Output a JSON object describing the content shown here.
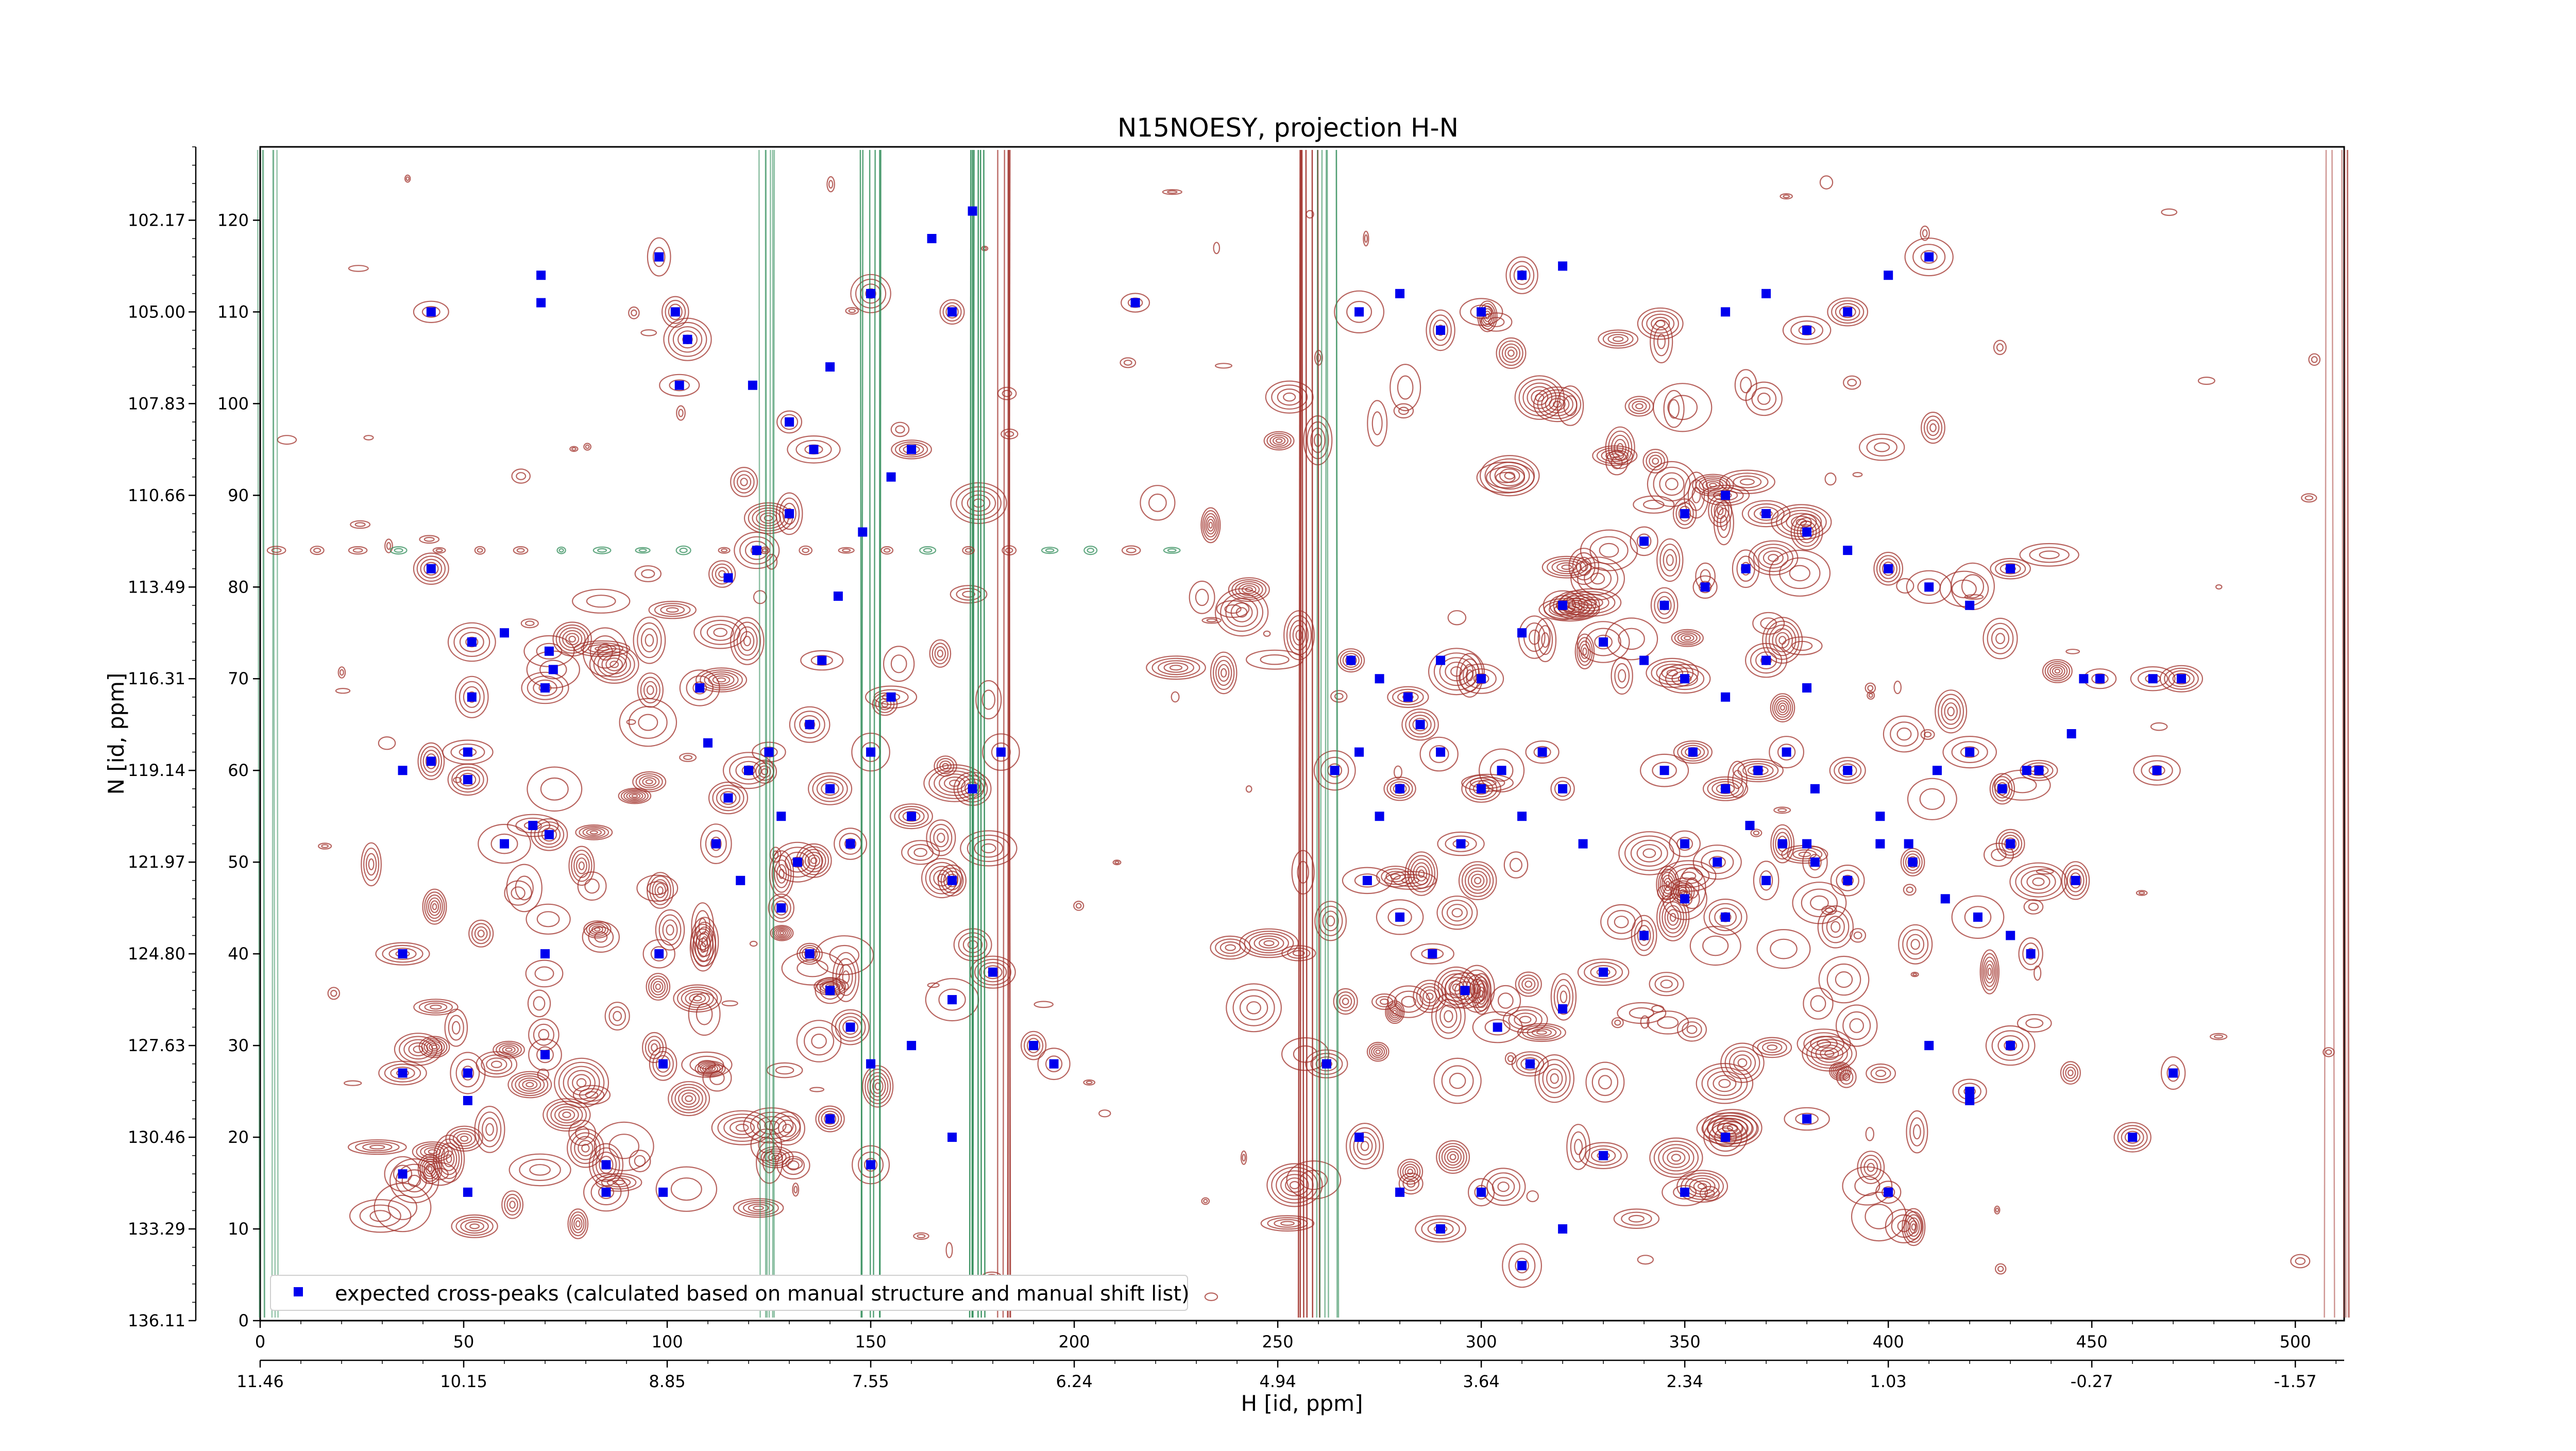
{
  "chart_data": {
    "type": "scatter",
    "title": "N15NOESY, projection H-N",
    "xlabel": "H [id, ppm]",
    "ylabel": "N [id, ppm]",
    "xlim": [
      0,
      512
    ],
    "ylim": [
      0,
      128
    ],
    "x_ticks": [
      0,
      50,
      100,
      150,
      200,
      250,
      300,
      350,
      400,
      450,
      500
    ],
    "y_ticks": [
      0,
      10,
      20,
      30,
      40,
      50,
      60,
      70,
      80,
      90,
      100,
      110,
      120
    ],
    "x_ppm_ticks": [
      {
        "at": 0,
        "label": "11.46"
      },
      {
        "at": 50,
        "label": "10.15"
      },
      {
        "at": 100,
        "label": "8.85"
      },
      {
        "at": 150,
        "label": "7.55"
      },
      {
        "at": 200,
        "label": "6.24"
      },
      {
        "at": 250,
        "label": "4.94"
      },
      {
        "at": 300,
        "label": "3.64"
      },
      {
        "at": 350,
        "label": "2.34"
      },
      {
        "at": 400,
        "label": "1.03"
      },
      {
        "at": 450,
        "label": "-0.27"
      },
      {
        "at": 500,
        "label": "-1.57"
      }
    ],
    "y_ppm_ticks": [
      {
        "at": 0,
        "label": "136.11"
      },
      {
        "at": 10,
        "label": "133.29"
      },
      {
        "at": 20,
        "label": "130.46"
      },
      {
        "at": 30,
        "label": "127.63"
      },
      {
        "at": 40,
        "label": "124.80"
      },
      {
        "at": 50,
        "label": "121.97"
      },
      {
        "at": 60,
        "label": "119.14"
      },
      {
        "at": 70,
        "label": "116.31"
      },
      {
        "at": 80,
        "label": "113.49"
      },
      {
        "at": 90,
        "label": "110.66"
      },
      {
        "at": 100,
        "label": "107.83"
      },
      {
        "at": 110,
        "label": "105.00"
      },
      {
        "at": 120,
        "label": "102.17"
      }
    ],
    "legend": {
      "label": "expected cross-peaks (calculated based on manual structure and manual shift list)",
      "placement": "lower-left"
    },
    "colors": {
      "peaks": "#0000ee",
      "contour_positive": "#a0302a",
      "contour_negative": "#2e8b57"
    },
    "series": [
      {
        "name": "expected cross-peaks (calculated based on manual structure and manual shift list)",
        "points": [
          [
            42,
            110
          ],
          [
            69,
            114
          ],
          [
            69,
            111
          ],
          [
            98,
            116
          ],
          [
            102,
            110
          ],
          [
            105,
            107
          ],
          [
            103,
            102
          ],
          [
            121,
            102
          ],
          [
            130,
            98
          ],
          [
            136,
            95
          ],
          [
            140,
            104
          ],
          [
            150,
            112
          ],
          [
            165,
            118
          ],
          [
            170,
            110
          ],
          [
            175,
            121
          ],
          [
            215,
            111
          ],
          [
            35,
            60
          ],
          [
            42,
            61
          ],
          [
            51,
            59
          ],
          [
            51,
            62
          ],
          [
            67,
            54
          ],
          [
            71,
            53
          ],
          [
            60,
            52
          ],
          [
            70,
            69
          ],
          [
            72,
            71
          ],
          [
            71,
            73
          ],
          [
            42,
            82
          ],
          [
            52,
            74
          ],
          [
            52,
            68
          ],
          [
            60,
            75
          ],
          [
            35,
            27
          ],
          [
            51,
            27
          ],
          [
            51,
            24
          ],
          [
            51,
            14
          ],
          [
            70,
            29
          ],
          [
            70,
            40
          ],
          [
            35,
            40
          ],
          [
            35,
            16
          ],
          [
            85,
            17
          ],
          [
            85,
            14
          ],
          [
            99,
            14
          ],
          [
            98,
            40
          ],
          [
            99,
            28
          ],
          [
            120,
            60
          ],
          [
            125,
            62
          ],
          [
            128,
            55
          ],
          [
            132,
            50
          ],
          [
            135,
            65
          ],
          [
            140,
            58
          ],
          [
            145,
            52
          ],
          [
            150,
            62
          ],
          [
            155,
            68
          ],
          [
            160,
            55
          ],
          [
            170,
            48
          ],
          [
            175,
            58
          ],
          [
            182,
            62
          ],
          [
            110,
            63
          ],
          [
            115,
            57
          ],
          [
            118,
            48
          ],
          [
            112,
            52
          ],
          [
            108,
            69
          ],
          [
            138,
            72
          ],
          [
            142,
            79
          ],
          [
            148,
            86
          ],
          [
            155,
            92
          ],
          [
            160,
            95
          ],
          [
            130,
            88
          ],
          [
            122,
            84
          ],
          [
            115,
            81
          ],
          [
            128,
            45
          ],
          [
            135,
            40
          ],
          [
            140,
            36
          ],
          [
            145,
            32
          ],
          [
            150,
            28
          ],
          [
            160,
            30
          ],
          [
            170,
            35
          ],
          [
            180,
            38
          ],
          [
            190,
            30
          ],
          [
            195,
            28
          ],
          [
            170,
            20
          ],
          [
            150,
            17
          ],
          [
            140,
            22
          ],
          [
            264,
            60
          ],
          [
            270,
            62
          ],
          [
            275,
            55
          ],
          [
            280,
            58
          ],
          [
            285,
            65
          ],
          [
            290,
            62
          ],
          [
            295,
            52
          ],
          [
            300,
            58
          ],
          [
            305,
            60
          ],
          [
            310,
            55
          ],
          [
            315,
            62
          ],
          [
            320,
            58
          ],
          [
            325,
            52
          ],
          [
            268,
            72
          ],
          [
            275,
            70
          ],
          [
            282,
            68
          ],
          [
            290,
            72
          ],
          [
            300,
            70
          ],
          [
            310,
            75
          ],
          [
            320,
            78
          ],
          [
            330,
            74
          ],
          [
            340,
            72
          ],
          [
            350,
            70
          ],
          [
            360,
            68
          ],
          [
            370,
            72
          ],
          [
            380,
            69
          ],
          [
            272,
            48
          ],
          [
            280,
            44
          ],
          [
            288,
            40
          ],
          [
            296,
            36
          ],
          [
            304,
            32
          ],
          [
            312,
            28
          ],
          [
            320,
            34
          ],
          [
            330,
            38
          ],
          [
            340,
            42
          ],
          [
            350,
            46
          ],
          [
            360,
            44
          ],
          [
            370,
            48
          ],
          [
            380,
            52
          ],
          [
            345,
            60
          ],
          [
            352,
            62
          ],
          [
            360,
            58
          ],
          [
            368,
            60
          ],
          [
            375,
            62
          ],
          [
            382,
            58
          ],
          [
            390,
            60
          ],
          [
            398,
            55
          ],
          [
            405,
            52
          ],
          [
            412,
            60
          ],
          [
            420,
            62
          ],
          [
            428,
            58
          ],
          [
            434,
            60
          ],
          [
            350,
            52
          ],
          [
            358,
            50
          ],
          [
            366,
            54
          ],
          [
            374,
            52
          ],
          [
            382,
            50
          ],
          [
            390,
            48
          ],
          [
            398,
            52
          ],
          [
            406,
            50
          ],
          [
            414,
            46
          ],
          [
            422,
            44
          ],
          [
            430,
            42
          ],
          [
            410,
            30
          ],
          [
            420,
            25
          ],
          [
            340,
            85
          ],
          [
            350,
            88
          ],
          [
            360,
            90
          ],
          [
            370,
            88
          ],
          [
            380,
            86
          ],
          [
            390,
            84
          ],
          [
            400,
            82
          ],
          [
            410,
            80
          ],
          [
            420,
            78
          ],
          [
            430,
            82
          ],
          [
            345,
            78
          ],
          [
            355,
            80
          ],
          [
            365,
            82
          ],
          [
            270,
            110
          ],
          [
            280,
            112
          ],
          [
            290,
            108
          ],
          [
            300,
            110
          ],
          [
            310,
            114
          ],
          [
            320,
            115
          ],
          [
            360,
            110
          ],
          [
            370,
            112
          ],
          [
            380,
            108
          ],
          [
            390,
            110
          ],
          [
            400,
            114
          ],
          [
            410,
            116
          ],
          [
            262,
            28
          ],
          [
            270,
            20
          ],
          [
            280,
            14
          ],
          [
            290,
            10
          ],
          [
            300,
            14
          ],
          [
            310,
            6
          ],
          [
            320,
            10
          ],
          [
            330,
            18
          ],
          [
            350,
            14
          ],
          [
            360,
            20
          ],
          [
            380,
            22
          ],
          [
            400,
            14
          ],
          [
            420,
            24
          ],
          [
            437,
            60
          ],
          [
            445,
            64
          ],
          [
            448,
            70
          ],
          [
            452,
            70
          ],
          [
            465,
            70
          ],
          [
            466,
            60
          ],
          [
            472,
            70
          ],
          [
            460,
            20
          ],
          [
            470,
            27
          ],
          [
            435,
            40
          ],
          [
            430,
            30
          ],
          [
            446,
            48
          ],
          [
            430,
            52
          ]
        ]
      }
    ]
  }
}
